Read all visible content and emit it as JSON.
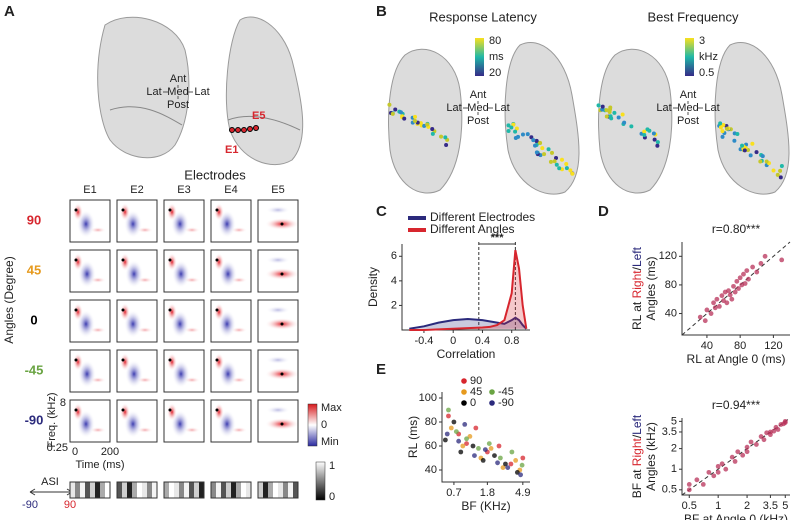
{
  "figure": {
    "orientation": [
      "Ant",
      "Lat",
      "Med",
      "Lat",
      "Post"
    ],
    "A": {
      "label": "A",
      "electrode_marks": [
        "E1",
        "E5"
      ],
      "title": "Electrodes",
      "columns": [
        "E1",
        "E2",
        "E3",
        "E4",
        "E5"
      ],
      "rows": [
        {
          "label": "90",
          "color": "#d7262e"
        },
        {
          "label": "45",
          "color": "#e69a1e"
        },
        {
          "label": "0",
          "color": "#000000"
        },
        {
          "label": "-45",
          "color": "#6aa443"
        },
        {
          "label": "-90",
          "color": "#2b2a7c"
        }
      ],
      "row_axis": "Angles (Degree)",
      "freq_axis": "Freq. (kHz)",
      "freq_ticks": [
        "8",
        "0.25"
      ],
      "time_axis": "Time (ms)",
      "time_ticks": [
        "0",
        "200"
      ],
      "colorbar": [
        "Max",
        "0",
        "Min"
      ],
      "asi": "ASI",
      "asi_ends": [
        "-90",
        "90"
      ],
      "asi_colorbar": [
        "1",
        "0"
      ]
    },
    "B": {
      "label": "B",
      "maps": [
        {
          "title": "Response Latency",
          "colorbar": [
            "80",
            "ms",
            "20"
          ]
        },
        {
          "title": "Best Frequency",
          "colorbar": [
            "3",
            "kHz",
            "0.5"
          ]
        }
      ]
    },
    "C": {
      "label": "C"
    },
    "D": {
      "label": "D"
    },
    "E": {
      "label": "E"
    }
  },
  "chart_data": [
    {
      "type": "density",
      "x_label": "Correlation",
      "y_label": "Density",
      "x": [
        -0.6,
        -0.4,
        -0.2,
        0,
        0.2,
        0.4,
        0.5,
        0.6,
        0.7,
        0.8,
        0.85,
        0.9,
        0.95,
        1.0
      ],
      "series": [
        {
          "name": "Different Electrodes",
          "color": "#2b2a7c",
          "values": [
            0.1,
            0.3,
            0.6,
            0.8,
            0.9,
            0.8,
            0.7,
            0.6,
            0.5,
            0.8,
            1.0,
            0.8,
            0.4,
            0.1
          ]
        },
        {
          "name": "Different Angles",
          "color": "#d7262e",
          "values": [
            0,
            0,
            0.05,
            0.1,
            0.15,
            0.2,
            0.25,
            0.4,
            0.8,
            3,
            6.5,
            5,
            2,
            0.1
          ]
        }
      ],
      "xlim": [
        -0.7,
        1.05
      ],
      "xticks": [
        -0.4,
        0,
        0.4,
        0.8
      ],
      "ylim": [
        0,
        7
      ],
      "yticks": [
        2,
        4,
        6
      ],
      "vlines": [
        0.35,
        0.85
      ],
      "annotation": "***"
    },
    {
      "type": "scatter",
      "title": "r=0.80***",
      "x_label": "RL at Angle 0 (ms)",
      "y_label": [
        {
          "text": "RL at "
        },
        {
          "text": "Right",
          "color": "#d7262e"
        },
        {
          "text": "/"
        },
        {
          "text": "Left",
          "color": "#2b2a7c"
        }
      ],
      "y_label_2": "Angles (ms)",
      "x": [
        32,
        38,
        40,
        45,
        48,
        50,
        52,
        55,
        58,
        60,
        62,
        64,
        66,
        68,
        70,
        72,
        74,
        76,
        78,
        80,
        82,
        84,
        86,
        88,
        90,
        95,
        100,
        105,
        110,
        130
      ],
      "series": [
        {
          "color": "#b8325a",
          "values": [
            35,
            30,
            45,
            40,
            55,
            48,
            60,
            50,
            65,
            58,
            70,
            55,
            72,
            66,
            60,
            78,
            70,
            85,
            75,
            90,
            80,
            95,
            82,
            100,
            88,
            105,
            98,
            110,
            120,
            115
          ]
        }
      ],
      "xlim": [
        10,
        140
      ],
      "xticks": [
        40,
        80,
        120
      ],
      "ylim": [
        10,
        140
      ],
      "yticks": [
        40,
        80,
        120
      ]
    },
    {
      "type": "scatter",
      "title": "r=0.94***",
      "x_label": "BF at Angle 0 (kHz)",
      "y_label": [
        {
          "text": "BF at "
        },
        {
          "text": "Right",
          "color": "#d7262e"
        },
        {
          "text": "/"
        },
        {
          "text": "Left",
          "color": "#2b2a7c"
        }
      ],
      "y_label_2": "Angles (kHz)",
      "x": [
        0.5,
        0.5,
        0.6,
        0.7,
        0.8,
        0.9,
        1,
        1,
        1.1,
        1.2,
        1.4,
        1.5,
        1.6,
        1.8,
        2,
        2,
        2.2,
        2.5,
        2.8,
        3,
        3.2,
        3.5,
        3.5,
        3.8,
        4,
        4.2,
        4.5,
        4.8,
        5,
        5
      ],
      "series": [
        {
          "color": "#b8325a",
          "values": [
            0.5,
            0.6,
            0.7,
            0.6,
            0.9,
            0.8,
            1.1,
            0.9,
            1.2,
            1,
            1.5,
            1.3,
            1.8,
            1.6,
            2.1,
            1.8,
            2.5,
            2.3,
            3,
            2.7,
            3.4,
            3.5,
            3.2,
            3.6,
            4.1,
            3.8,
            4.5,
            4.6,
            4.8,
            5
          ]
        }
      ],
      "xlim": [
        0.42,
        5.6
      ],
      "xlog": true,
      "xticks": [
        0.5,
        1,
        2,
        3.5,
        5
      ],
      "ylim": [
        0.42,
        5.6
      ],
      "ylog": true,
      "yticks": [
        0.5,
        1,
        2,
        3.5,
        5
      ]
    },
    {
      "type": "scatter",
      "x_label": "BF (KHz)",
      "y_label": "RL (ms)",
      "series": [
        {
          "name": "90",
          "color": "#d7262e",
          "x": [
            0.6,
            0.8,
            1,
            1.3,
            1.8,
            2.5,
            3.5,
            4.9
          ],
          "values": [
            85,
            70,
            62,
            75,
            55,
            60,
            45,
            50
          ]
        },
        {
          "name": "45",
          "color": "#e69a1e",
          "x": [
            0.65,
            0.9,
            1.1,
            1.5,
            2,
            2.8,
            4,
            4.5
          ],
          "values": [
            75,
            60,
            68,
            50,
            58,
            42,
            48,
            40
          ]
        },
        {
          "name": "0",
          "color": "#000000",
          "x": [
            0.55,
            0.7,
            0.85,
            1.2,
            1.6,
            2.2,
            3,
            4.2
          ],
          "values": [
            65,
            80,
            55,
            60,
            48,
            52,
            45,
            38
          ]
        },
        {
          "name": "-45",
          "color": "#6aa443",
          "x": [
            0.6,
            0.75,
            1,
            1.4,
            1.9,
            2.6,
            3.6,
            4.8
          ],
          "values": [
            90,
            72,
            66,
            58,
            62,
            50,
            55,
            44
          ]
        },
        {
          "name": "-90",
          "color": "#2b2a7c",
          "x": [
            0.58,
            0.8,
            0.95,
            1.25,
            1.7,
            2.4,
            3.2,
            4.6
          ],
          "values": [
            70,
            64,
            78,
            52,
            57,
            46,
            42,
            36
          ]
        }
      ],
      "xlim": [
        0.5,
        6
      ],
      "xlog": true,
      "xticks": [
        0.7,
        1.8,
        4.9
      ],
      "ylim": [
        30,
        105
      ],
      "yticks": [
        40,
        60,
        80,
        100
      ]
    }
  ]
}
